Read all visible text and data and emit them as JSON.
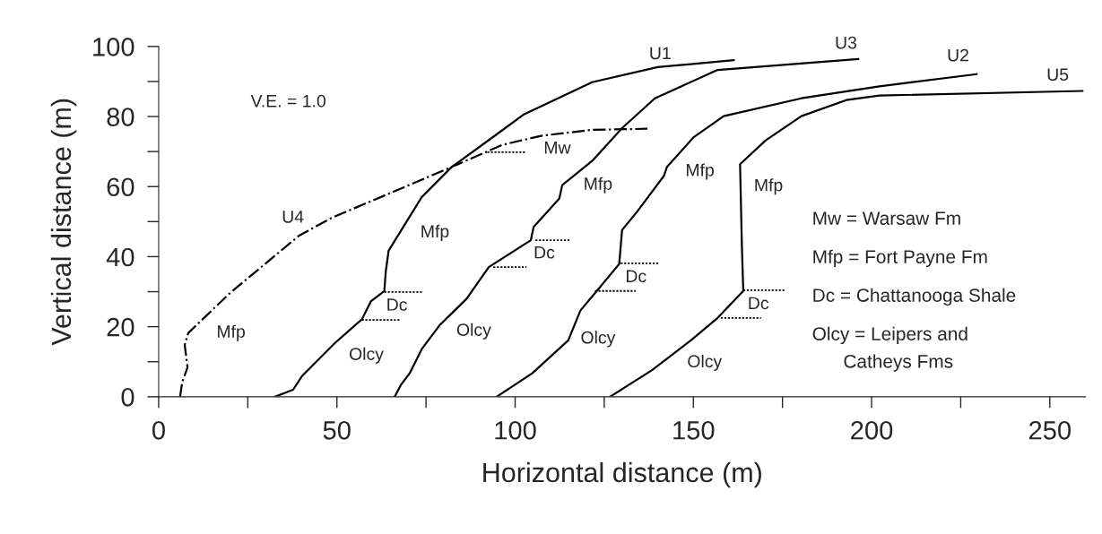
{
  "chart_data": {
    "type": "line",
    "xlabel": "Horizontal distance (m)",
    "ylabel": "Vertical distance (m)",
    "xlim": [
      0,
      260
    ],
    "ylim": [
      0,
      100
    ],
    "xticks": [
      0,
      {
        "value": 25,
        "label": null
      },
      50,
      {
        "value": 75,
        "label": null
      },
      100,
      {
        "value": 125,
        "label": null
      },
      150,
      {
        "value": 175,
        "label": null
      },
      200,
      {
        "value": 225,
        "label": null
      },
      250
    ],
    "yticks": [
      0,
      {
        "value": 10,
        "label": null
      },
      20,
      {
        "value": 30,
        "label": null
      },
      40,
      {
        "value": 50,
        "label": null
      },
      60,
      {
        "value": 70,
        "label": null
      },
      80,
      {
        "value": 90,
        "label": null
      },
      100
    ],
    "grid": false,
    "legend": false,
    "marker": "none",
    "series": [
      {
        "name": "U4",
        "color": "#000000",
        "line_style": "dashdot",
        "x": [
          6.0,
          6.6,
          8.1,
          7.3,
          8.3,
          20.1,
          39.4,
          48.6,
          82.2,
          96.4,
          107.3,
          121.6,
          137.1
        ],
        "values": [
          0,
          4.2,
          8.4,
          14.8,
          18.2,
          29.7,
          46.0,
          51.1,
          65.6,
          71.9,
          74.5,
          76.2,
          76.5
        ]
      },
      {
        "name": "U1",
        "color": "#000000",
        "line_style": "solid",
        "x": [
          32.6,
          37.7,
          40.2,
          49.4,
          57.0,
          59.5,
          63.3,
          63.7,
          64.5,
          73.8,
          82.2,
          94.8,
          102.3,
          121.6,
          140.0,
          161.4
        ],
        "values": [
          0,
          2.0,
          5.9,
          15.3,
          22.1,
          27.2,
          30.2,
          35.7,
          41.7,
          57.0,
          65.6,
          74.9,
          80.5,
          89.8,
          94.1,
          96.1
        ]
      },
      {
        "name": "U3",
        "color": "#000000",
        "line_style": "solid",
        "x": [
          66.2,
          67.9,
          70.4,
          73.8,
          78.8,
          86.4,
          92.6,
          104.4,
          105.2,
          112.4,
          113.2,
          121.6,
          130.0,
          139.2,
          156.8,
          196.3
        ],
        "values": [
          0,
          3.3,
          6.7,
          13.6,
          20.4,
          28.0,
          37.0,
          44.7,
          48.5,
          56.6,
          60.4,
          67.3,
          76.7,
          85.2,
          93.3,
          96.4
        ]
      },
      {
        "name": "U2",
        "color": "#000000",
        "line_style": "solid",
        "x": [
          94.8,
          104.8,
          114.9,
          118.3,
          122.9,
          129.2,
          130.0,
          134.2,
          141.7,
          142.6,
          150.1,
          158.5,
          180.3,
          202.2,
          229.5
        ],
        "values": [
          0,
          6.7,
          16.1,
          24.6,
          30.2,
          37.9,
          47.6,
          52.8,
          63.0,
          65.6,
          74.1,
          80.1,
          85.2,
          88.6,
          92.1
        ]
      },
      {
        "name": "U5",
        "color": "#000000",
        "line_style": "solid",
        "x": [
          126.6,
          138.4,
          149.3,
          156.8,
          164.0,
          163.6,
          163.1,
          170.3,
          180.3,
          192.9,
          202.2,
          259.2
        ],
        "values": [
          0,
          7.6,
          16.1,
          22.5,
          30.2,
          43.4,
          66.4,
          73.2,
          80.1,
          84.7,
          86.0,
          87.3
        ]
      },
      {
        "color": "#000000",
        "line_style": "dotted",
        "x": [
          92.2,
          103.0
        ],
        "values": [
          69.8,
          69.8
        ]
      },
      {
        "color": "#000000",
        "line_style": "dotted",
        "x": [
          63.3,
          74.2
        ],
        "values": [
          29.9,
          29.9
        ]
      },
      {
        "color": "#000000",
        "line_style": "dotted",
        "x": [
          57.0,
          67.8
        ],
        "values": [
          21.9,
          21.9
        ]
      },
      {
        "color": "#000000",
        "line_style": "dotted",
        "x": [
          105.7,
          115.3
        ],
        "values": [
          44.7,
          44.7
        ]
      },
      {
        "color": "#000000",
        "line_style": "dotted",
        "x": [
          93.9,
          103.2
        ],
        "values": [
          37.0,
          37.0
        ]
      },
      {
        "color": "#000000",
        "line_style": "dotted",
        "x": [
          129.6,
          140.5
        ],
        "values": [
          38.1,
          38.1
        ]
      },
      {
        "color": "#000000",
        "line_style": "dotted",
        "x": [
          122.4,
          133.8
        ],
        "values": [
          30.2,
          30.2
        ]
      },
      {
        "color": "#000000",
        "line_style": "dotted",
        "x": [
          164.0,
          175.7
        ],
        "values": [
          30.4,
          30.4
        ]
      },
      {
        "color": "#000000",
        "line_style": "dotted",
        "x": [
          157.7,
          169.0
        ],
        "values": [
          22.5,
          22.5
        ]
      }
    ],
    "annotations": [
      "Mfp",
      "Mfp",
      "Dc",
      "Olcy",
      "Mw",
      "Mfp",
      "Dc",
      "Olcy",
      "Mfp",
      "Dc",
      "Olcy",
      "Mfp",
      "Dc",
      "Olcy",
      "V.E. = 1.0",
      "Mw = Warsaw Fm",
      "Mfp = Fort Payne Fm",
      "Dc = Chattanooga Shale",
      "Olcy = Leipers and\n      Catheys Fms"
    ]
  }
}
